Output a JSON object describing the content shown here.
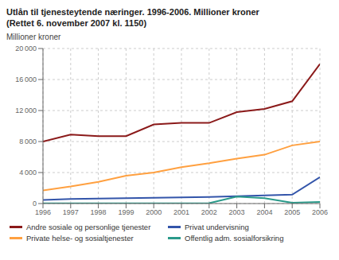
{
  "chart_data": {
    "type": "line",
    "title": "Utlån til tjenesteytende næringer. 1996-2006. Millioner kroner",
    "subtitle": "(Rettet 6. november 2007 kl. 1150)",
    "y_label": "Millioner kroner",
    "x": [
      1996,
      1997,
      1998,
      1999,
      2000,
      2001,
      2002,
      2003,
      2004,
      2005,
      2006
    ],
    "series": [
      {
        "name": "Andre sosiale og personlige tjenester",
        "color": "#8B1A1A",
        "values": [
          8000,
          8900,
          8700,
          8700,
          10200,
          10400,
          10400,
          11800,
          12200,
          13200,
          18000
        ]
      },
      {
        "name": "Private helse- og sosialtjenester",
        "color": "#FFA040",
        "values": [
          1700,
          2200,
          2800,
          3600,
          4000,
          4700,
          5200,
          5800,
          6300,
          7500,
          8000
        ]
      },
      {
        "name": "Privat undervisning",
        "color": "#3355AA",
        "values": [
          450,
          600,
          650,
          700,
          750,
          800,
          850,
          950,
          1050,
          1150,
          3400
        ]
      },
      {
        "name": "Offentlig adm. sosialforsikring",
        "color": "#2A9A8A",
        "values": [
          30,
          30,
          30,
          30,
          30,
          30,
          50,
          900,
          700,
          100,
          200
        ]
      }
    ],
    "xlim": [
      1996,
      2006
    ],
    "xticks": [
      1996,
      1997,
      1998,
      1999,
      2000,
      2001,
      2002,
      2003,
      2004,
      2005,
      2006
    ],
    "ylim": [
      0,
      20000
    ],
    "yticks": [
      0,
      {
        "value": 4000,
        "label": "4 000"
      },
      {
        "value": 8000,
        "label": "8 000"
      },
      {
        "value": 12000,
        "label": "12 000"
      },
      {
        "value": 16000,
        "label": "16 000"
      },
      {
        "value": 20000,
        "label": "20 000"
      }
    ],
    "grid": true,
    "legend": "bottom"
  }
}
